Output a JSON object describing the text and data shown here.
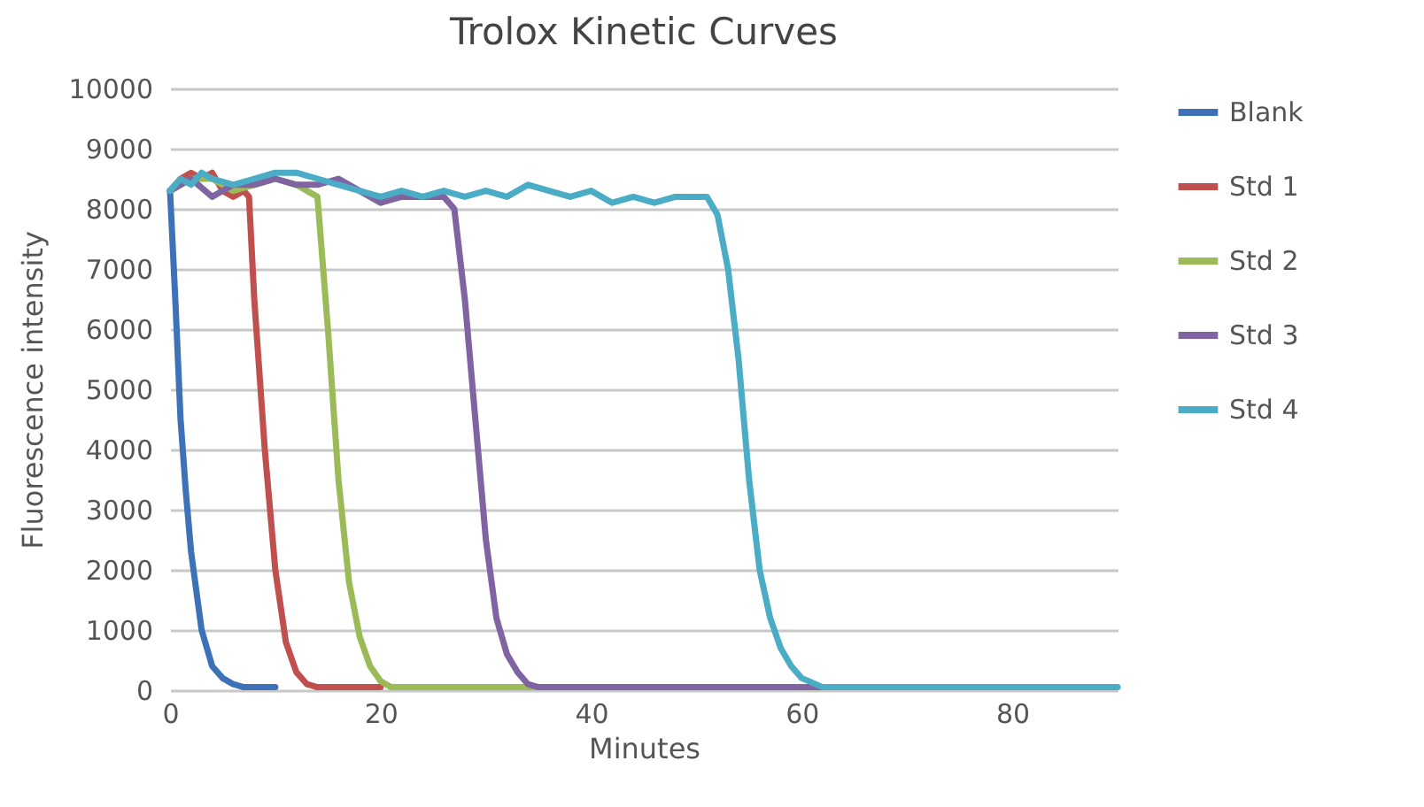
{
  "chart_data": {
    "type": "line",
    "title": "Trolox Kinetic Curves",
    "xlabel": "Minutes",
    "ylabel": "Fluorescence intensity",
    "xlim": [
      0,
      90
    ],
    "xticks": [
      0,
      20,
      40,
      60,
      80
    ],
    "ylim": [
      0,
      10000
    ],
    "yticks": [
      0,
      1000,
      2000,
      3000,
      4000,
      5000,
      6000,
      7000,
      8000,
      9000,
      10000
    ],
    "grid": "y",
    "legend": "right",
    "marker": "none",
    "line_style": "solid",
    "series": [
      {
        "name": "Blank",
        "color": "#3d72b8",
        "x": [
          0,
          0.5,
          1,
          1.5,
          2,
          3,
          4,
          5,
          6,
          7,
          10
        ],
        "values": [
          8300,
          6500,
          4500,
          3300,
          2300,
          1000,
          400,
          200,
          100,
          50,
          50
        ]
      },
      {
        "name": "Std 1",
        "color": "#c0504d",
        "x": [
          0,
          1,
          2,
          3,
          4,
          5,
          6,
          7,
          7.5,
          8,
          9,
          10,
          11,
          12,
          13,
          14,
          20
        ],
        "values": [
          8300,
          8500,
          8600,
          8500,
          8600,
          8300,
          8200,
          8300,
          8200,
          6500,
          4000,
          2000,
          800,
          300,
          100,
          50,
          50
        ]
      },
      {
        "name": "Std 2",
        "color": "#9bbb59",
        "x": [
          0,
          2,
          4,
          6,
          8,
          10,
          12,
          13,
          14,
          15,
          16,
          17,
          18,
          19,
          20,
          21,
          30,
          35
        ],
        "values": [
          8300,
          8500,
          8500,
          8300,
          8400,
          8500,
          8400,
          8300,
          8200,
          6000,
          3500,
          1800,
          900,
          400,
          150,
          50,
          50,
          50
        ]
      },
      {
        "name": "Std 3",
        "color": "#8064a2",
        "x": [
          0,
          2,
          4,
          6,
          8,
          10,
          12,
          14,
          16,
          18,
          20,
          22,
          24,
          26,
          27,
          28,
          29,
          30,
          31,
          32,
          33,
          34,
          35,
          40,
          50,
          62
        ],
        "values": [
          8300,
          8500,
          8200,
          8400,
          8400,
          8500,
          8400,
          8400,
          8500,
          8300,
          8100,
          8200,
          8200,
          8200,
          8000,
          6500,
          4500,
          2500,
          1200,
          600,
          300,
          100,
          50,
          50,
          50,
          50
        ]
      },
      {
        "name": "Std 4",
        "color": "#4bacc6",
        "x": [
          0,
          1,
          2,
          3,
          4,
          6,
          8,
          10,
          12,
          14,
          16,
          18,
          20,
          22,
          24,
          26,
          28,
          30,
          32,
          34,
          36,
          38,
          40,
          42,
          44,
          46,
          48,
          50,
          51,
          52,
          53,
          54,
          55,
          56,
          57,
          58,
          59,
          60,
          62,
          63,
          70,
          80,
          90
        ],
        "values": [
          8300,
          8500,
          8400,
          8600,
          8500,
          8400,
          8500,
          8600,
          8600,
          8500,
          8400,
          8300,
          8200,
          8300,
          8200,
          8300,
          8200,
          8300,
          8200,
          8400,
          8300,
          8200,
          8300,
          8100,
          8200,
          8100,
          8200,
          8200,
          8200,
          7900,
          7000,
          5500,
          3500,
          2000,
          1200,
          700,
          400,
          200,
          50,
          50,
          50,
          50,
          50
        ]
      }
    ]
  }
}
